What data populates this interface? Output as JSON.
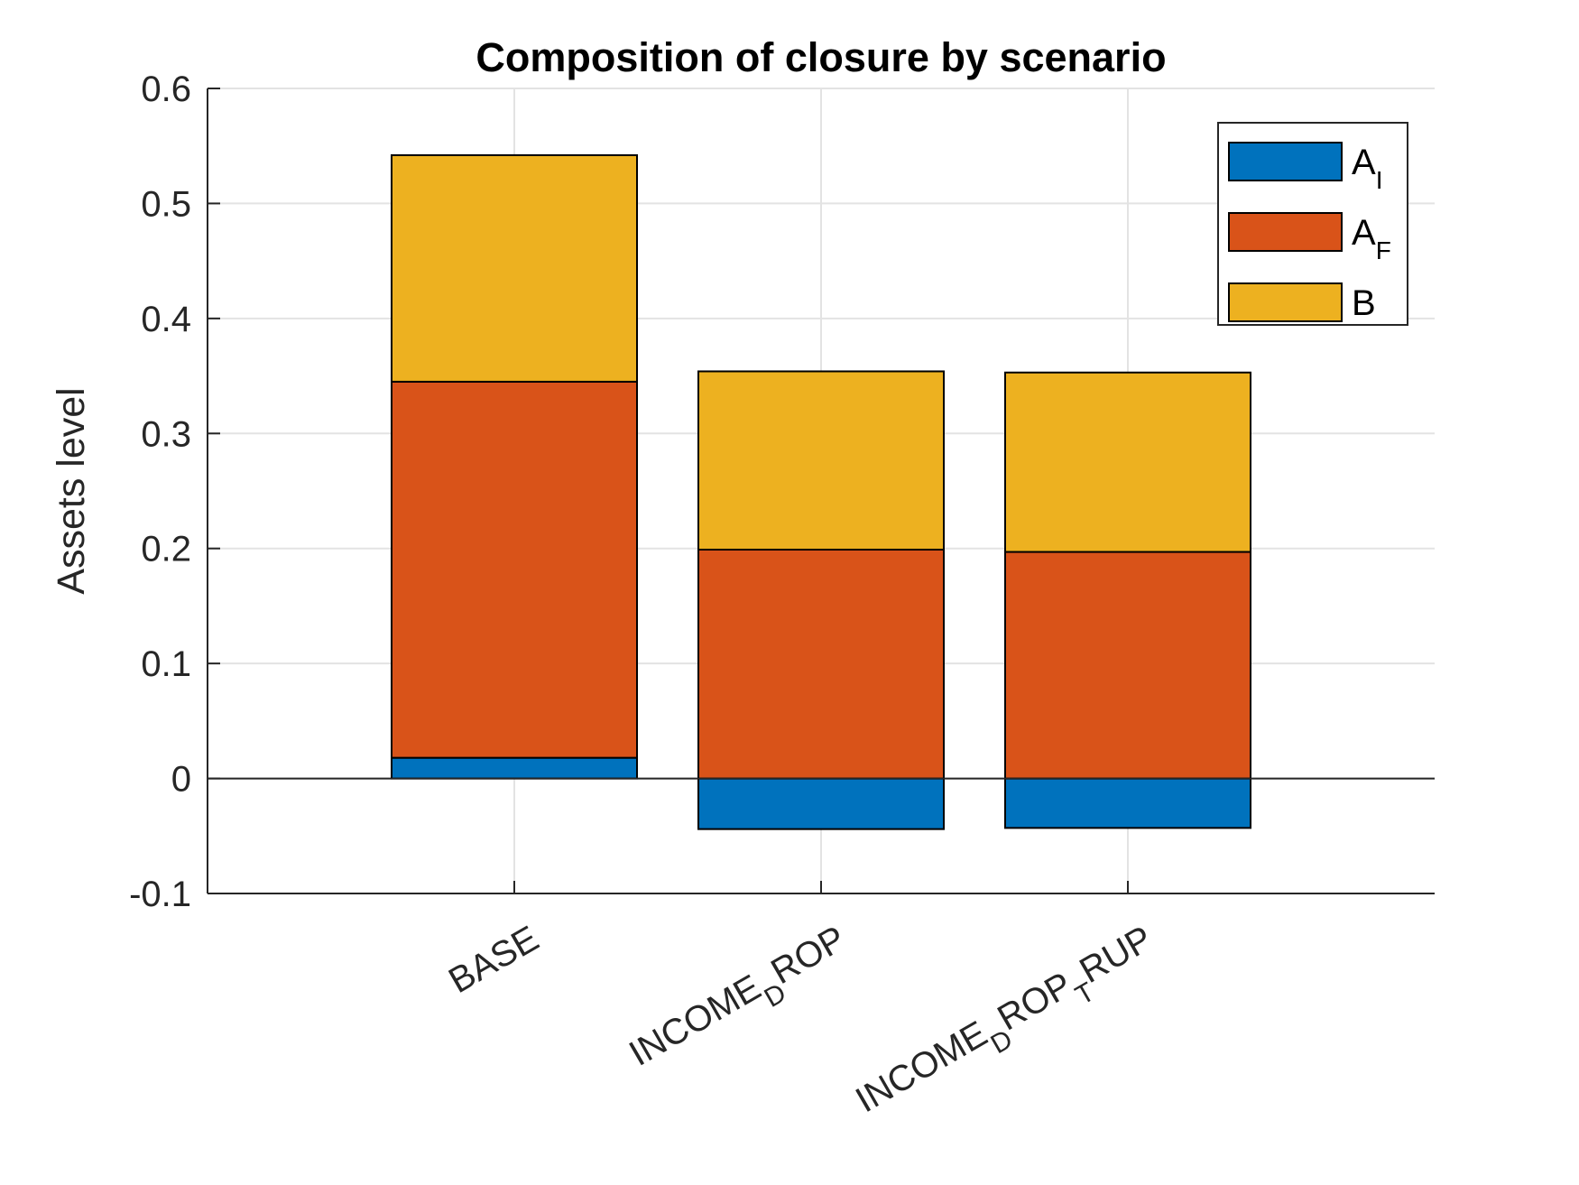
{
  "chart_data": {
    "type": "bar",
    "stacked": true,
    "title": "Composition of closure by scenario",
    "xlabel": "",
    "ylabel": "Assets level",
    "ylim": [
      -0.1,
      0.6
    ],
    "yticks": [
      "-0.1",
      "0",
      "0.1",
      "0.2",
      "0.3",
      "0.4",
      "0.5",
      "0.6"
    ],
    "grid": true,
    "legend_position": "top-right",
    "categories": [
      {
        "main": "BASE",
        "parts": [
          {
            "text": "BASE",
            "sub": false
          }
        ]
      },
      {
        "main": "INCOME_DROP",
        "parts": [
          {
            "text": "INCOME",
            "sub": false
          },
          {
            "text": "D",
            "sub": true
          },
          {
            "text": "ROP",
            "sub": false
          }
        ]
      },
      {
        "main": "INCOME_DROP_TRUP",
        "parts": [
          {
            "text": "INCOME",
            "sub": false
          },
          {
            "text": "D",
            "sub": true
          },
          {
            "text": "ROP",
            "sub": false
          },
          {
            "text": "T",
            "sub": true
          },
          {
            "text": "RUP",
            "sub": false
          }
        ]
      }
    ],
    "series": [
      {
        "name": "A_I",
        "label_main": "A",
        "label_sub": "I",
        "color": "#0072BD",
        "values": [
          0.018,
          -0.044,
          -0.043
        ]
      },
      {
        "name": "A_F",
        "label_main": "A",
        "label_sub": "F",
        "color": "#D95319",
        "values": [
          0.327,
          0.199,
          0.197
        ]
      },
      {
        "name": "B",
        "label_main": "B",
        "label_sub": "",
        "color": "#EDB120",
        "values": [
          0.197,
          0.155,
          0.156
        ]
      }
    ]
  }
}
